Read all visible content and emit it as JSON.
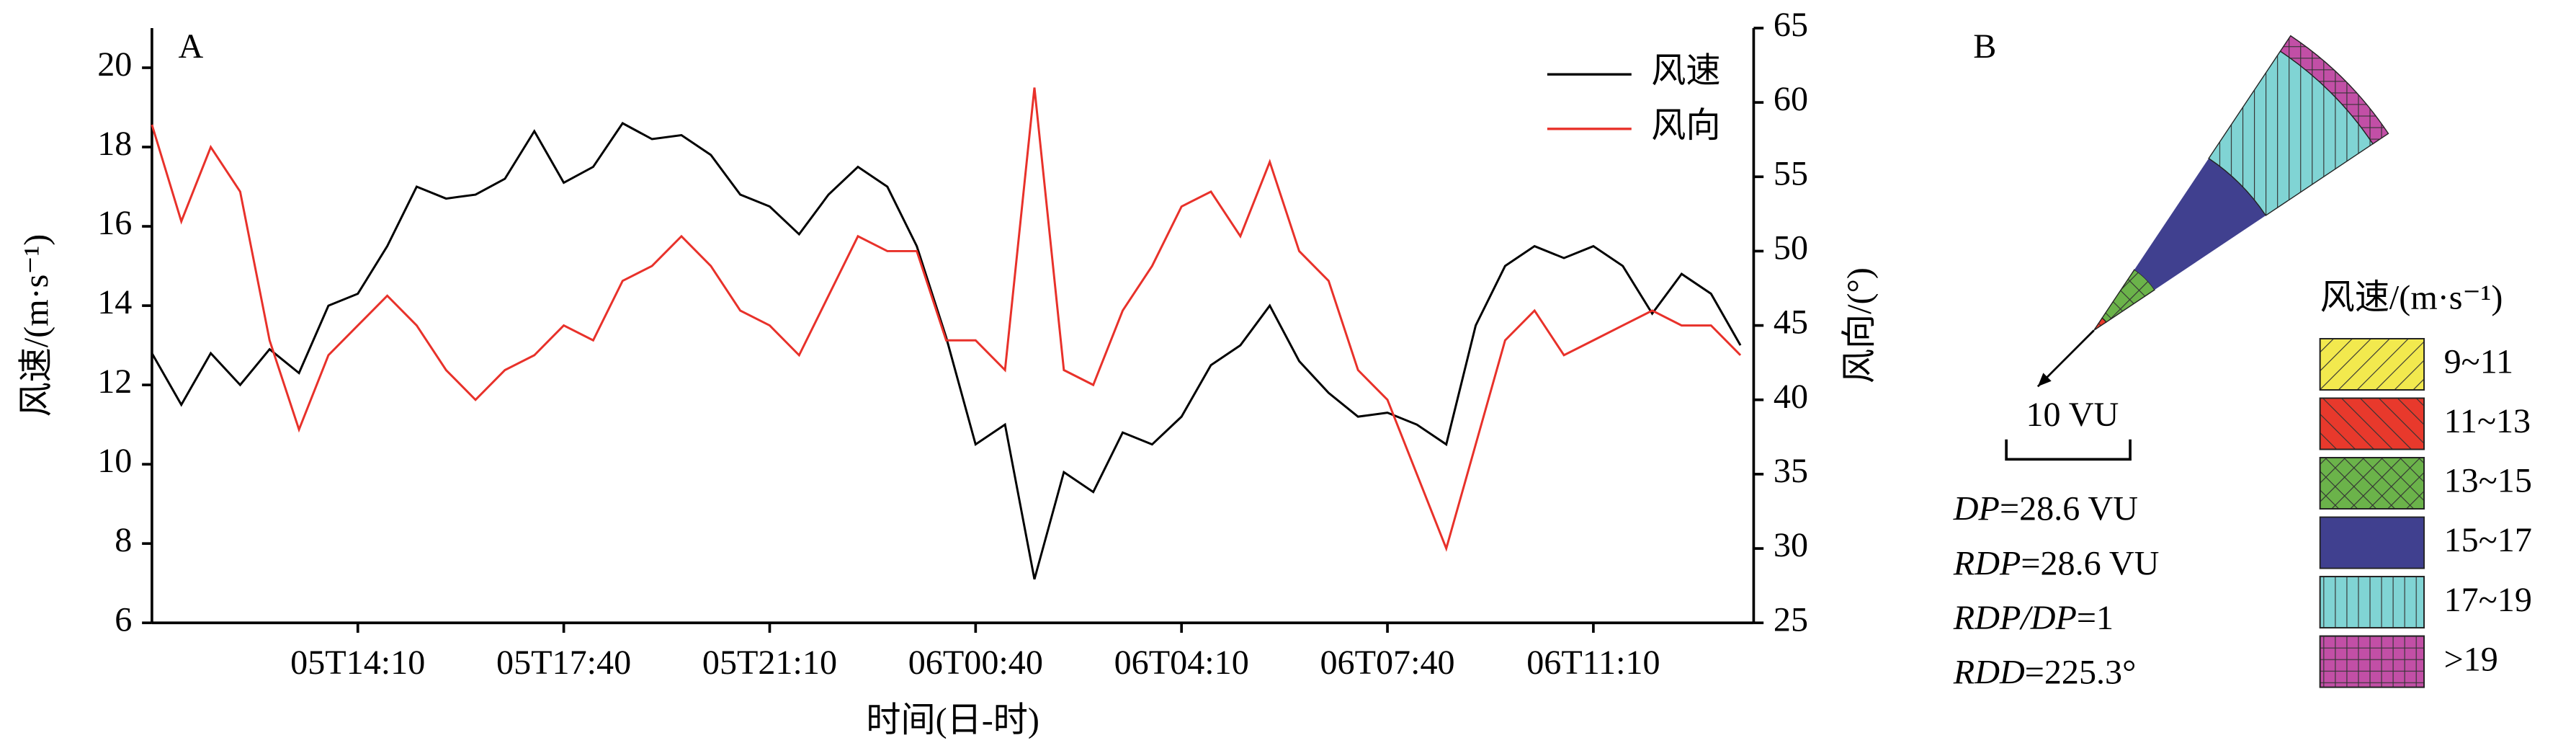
{
  "chart_data": [
    {
      "type": "line",
      "label": "A",
      "x": [
        "05T10:40",
        "05T11:10",
        "05T11:40",
        "05T12:10",
        "05T12:40",
        "05T13:10",
        "05T13:40",
        "05T14:10",
        "05T14:40",
        "05T15:10",
        "05T15:40",
        "05T16:10",
        "05T16:40",
        "05T17:10",
        "05T17:40",
        "05T18:10",
        "05T18:40",
        "05T19:10",
        "05T19:40",
        "05T20:10",
        "05T20:40",
        "05T21:10",
        "05T21:40",
        "05T22:10",
        "05T22:40",
        "05T23:10",
        "05T23:40",
        "06T00:10",
        "06T00:40",
        "06T01:10",
        "06T01:40",
        "06T02:10",
        "06T02:40",
        "06T03:10",
        "06T03:40",
        "06T04:10",
        "06T04:40",
        "06T05:10",
        "06T05:40",
        "06T06:10",
        "06T06:40",
        "06T07:10",
        "06T07:40",
        "06T08:10",
        "06T08:40",
        "06T09:10",
        "06T09:40",
        "06T10:10",
        "06T10:40",
        "06T11:10",
        "06T11:40",
        "06T12:10",
        "06T12:40",
        "06T13:10",
        "06T13:40"
      ],
      "xticks": [
        "05T14:10",
        "05T17:40",
        "05T21:10",
        "06T00:40",
        "06T04:10",
        "06T07:40",
        "06T11:10"
      ],
      "xlabel": "时间(日-时)",
      "ylabel": "风速/(m·s⁻¹)",
      "y2label": "风向/(°)",
      "ylim": [
        6,
        21
      ],
      "yticks": [
        6,
        8,
        10,
        12,
        14,
        16,
        18,
        20
      ],
      "y2lim": [
        25,
        65
      ],
      "y2ticks": [
        25,
        30,
        35,
        40,
        45,
        50,
        55,
        60,
        65
      ],
      "legend": "upper right",
      "series": [
        {
          "name": "风速",
          "color": "#000000",
          "values": [
            12.8,
            11.5,
            12.8,
            12.0,
            12.9,
            12.3,
            14.0,
            14.3,
            15.5,
            17.0,
            16.7,
            16.8,
            17.2,
            18.4,
            17.1,
            17.5,
            18.6,
            18.2,
            18.3,
            17.8,
            16.8,
            16.5,
            15.8,
            16.8,
            17.5,
            17.0,
            15.5,
            13.2,
            10.5,
            11.0,
            7.1,
            9.8,
            9.3,
            10.8,
            10.5,
            11.2,
            12.5,
            13.0,
            14.0,
            12.6,
            11.8,
            11.2,
            11.3,
            11.0,
            10.5,
            13.5,
            15.0,
            15.5,
            15.2,
            15.5,
            15.0,
            13.8,
            14.8,
            14.3,
            13.0
          ]
        },
        {
          "name": "风向",
          "color": "#e8312a",
          "axis": "y2",
          "values": [
            58.5,
            52,
            57,
            54,
            44,
            38,
            43,
            45,
            47,
            45,
            42,
            40,
            42,
            43,
            45,
            44,
            48,
            49,
            51,
            49,
            46,
            45,
            43,
            47,
            51,
            50,
            50,
            44,
            44,
            42,
            61,
            42,
            41,
            46,
            49,
            53,
            54,
            51,
            56,
            50,
            48,
            42,
            40,
            35,
            30,
            37,
            44,
            46,
            43,
            44,
            45,
            46,
            45,
            45,
            43
          ]
        }
      ]
    },
    {
      "type": "rose",
      "label": "B",
      "direction": 45,
      "scale_label": "10 VU",
      "annotations": [
        {
          "italic": "DP",
          "text": "=28.6 VU"
        },
        {
          "italic": "RDP",
          "text": "=28.6 VU"
        },
        {
          "italic": "RDP/DP",
          "text": "=1"
        },
        {
          "italic": "RDD",
          "text": "=225.3°"
        }
      ],
      "legend_title": "风速/(m·s⁻¹)",
      "categories": [
        "9~11",
        "11~13",
        "13~15",
        "15~17",
        "17~19",
        ">19"
      ],
      "values": [
        0.2,
        1.0,
        4.7,
        10.8,
        10.4,
        1.5
      ],
      "colors": [
        "#f2e94e",
        "#e8392c",
        "#6bb34a",
        "#40408f",
        "#80d4d4",
        "#c24fa6"
      ],
      "hatches": [
        "/",
        "\\",
        "x",
        "",
        "|",
        "+"
      ]
    }
  ]
}
